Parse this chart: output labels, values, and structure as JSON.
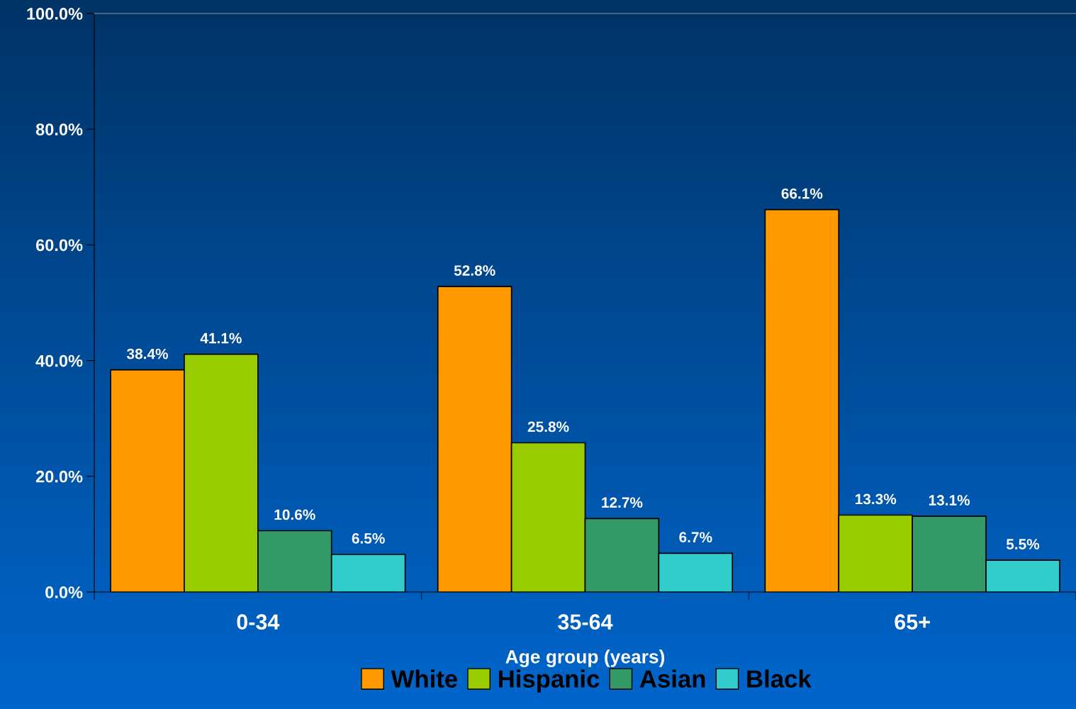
{
  "chart_data": {
    "type": "bar",
    "xlabel": "Age group (years)",
    "categories": [
      "0-34",
      "35-64",
      "65+"
    ],
    "series": [
      {
        "name": "White",
        "color": "#ff9900",
        "values": [
          38.4,
          52.8,
          66.1
        ],
        "value_labels": [
          "38.4%",
          "52.8%",
          "66.1%"
        ]
      },
      {
        "name": "Hispanic",
        "color": "#99cc00",
        "values": [
          41.1,
          25.8,
          13.3
        ],
        "value_labels": [
          "41.1%",
          "25.8%",
          "13.3%"
        ]
      },
      {
        "name": "Asian",
        "color": "#339966",
        "values": [
          10.6,
          12.7,
          13.1
        ],
        "value_labels": [
          "10.6%",
          "12.7%",
          "13.1%"
        ]
      },
      {
        "name": "Black",
        "color": "#33cccc",
        "values": [
          6.5,
          6.7,
          5.5
        ],
        "value_labels": [
          "6.5%",
          "6.7%",
          "5.5%"
        ]
      }
    ],
    "ylim": [
      0,
      100
    ],
    "yticks": [
      {
        "value": 0,
        "label": "0.0%"
      },
      {
        "value": 20,
        "label": "20.0%"
      },
      {
        "value": 40,
        "label": "40.0%"
      },
      {
        "value": 60,
        "label": "60.0%"
      },
      {
        "value": 80,
        "label": "80.0%"
      },
      {
        "value": 100,
        "label": "100.0%"
      }
    ],
    "grid": false,
    "legend": "bottom"
  }
}
